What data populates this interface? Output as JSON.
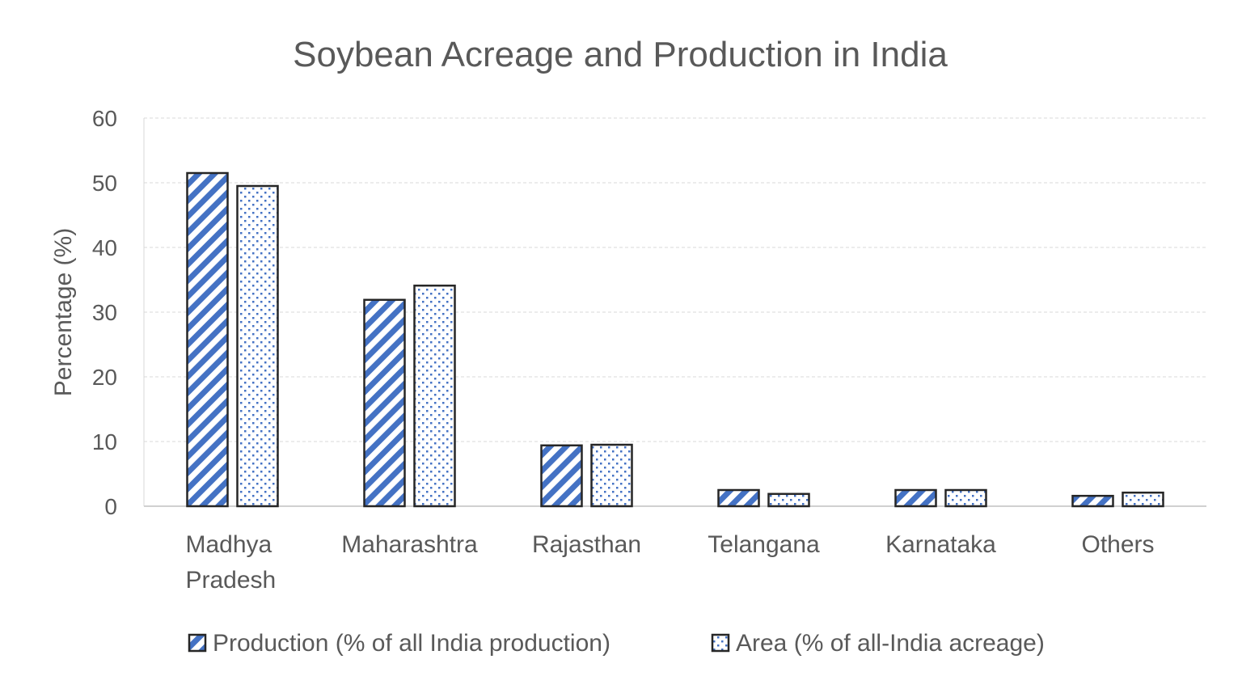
{
  "chart_data": {
    "type": "bar",
    "title": "Soybean Acreage and Production in India",
    "xlabel": "",
    "ylabel": "Percentage (%)",
    "ylim": [
      0,
      60
    ],
    "yticks": [
      0,
      10,
      20,
      30,
      40,
      50,
      60
    ],
    "grid": true,
    "legend": "bottom",
    "categories": [
      [
        "Madhya",
        "Pradesh"
      ],
      [
        "Maharashtra"
      ],
      [
        "Rajasthan"
      ],
      [
        "Telangana"
      ],
      [
        "Karnataka"
      ],
      [
        "Others"
      ]
    ],
    "series": [
      {
        "name": "Production (% of all India production)",
        "pattern": "diagonal-stripes",
        "color": "#4472C4",
        "values": [
          51.5,
          31.9,
          9.4,
          2.5,
          2.5,
          1.6
        ]
      },
      {
        "name": "Area (% of all-India acreage)",
        "pattern": "dots",
        "color": "#4472C4",
        "values": [
          49.5,
          34.1,
          9.5,
          1.9,
          2.5,
          2.1
        ]
      }
    ]
  }
}
